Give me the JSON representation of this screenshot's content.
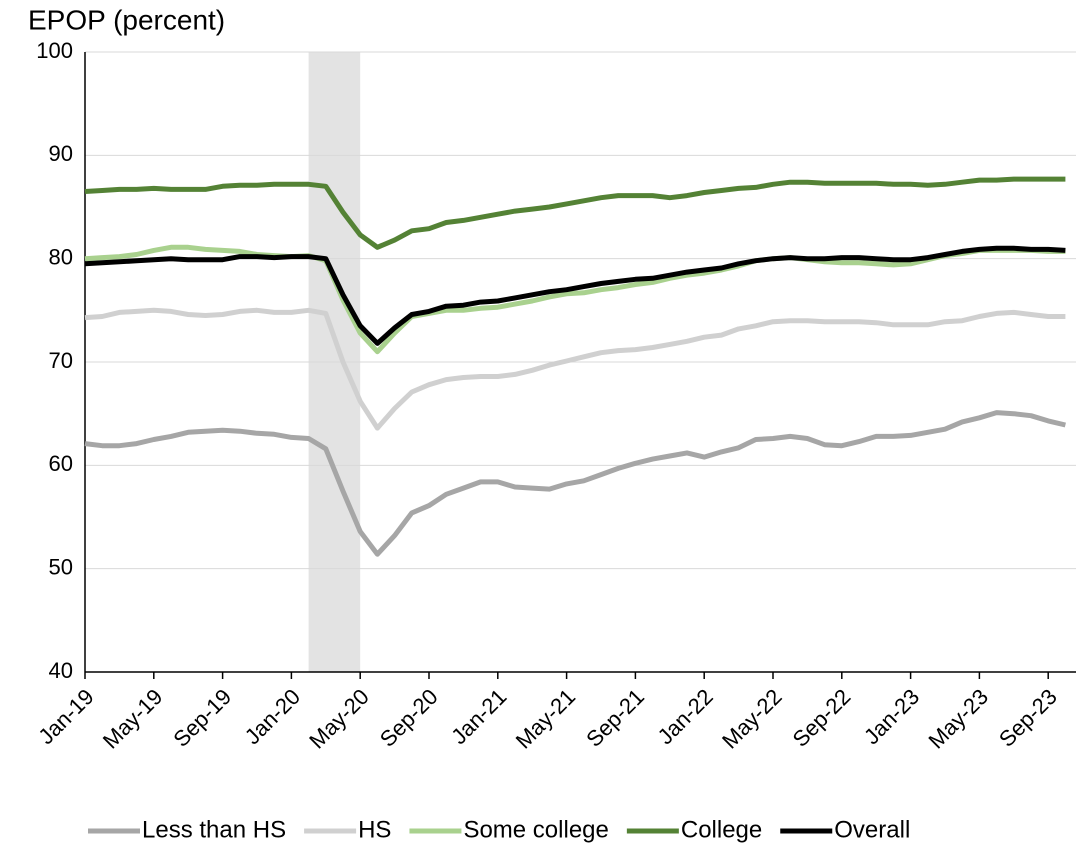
{
  "chart_data": {
    "type": "line",
    "title": "EPOP (percent)",
    "categories": [
      "Jan-19",
      null,
      null,
      null,
      "May-19",
      null,
      null,
      null,
      "Sep-19",
      null,
      null,
      null,
      "Jan-20",
      null,
      null,
      null,
      "May-20",
      null,
      null,
      null,
      "Sep-20",
      null,
      null,
      null,
      "Jan-21",
      null,
      null,
      null,
      "May-21",
      null,
      null,
      null,
      "Sep-21",
      null,
      null,
      null,
      "Jan-22",
      null,
      null,
      null,
      "May-22",
      null,
      null,
      null,
      "Sep-22",
      null,
      null,
      null,
      "Jan-23",
      null,
      null,
      null,
      "May-23",
      null,
      null,
      null,
      "Sep-23",
      null
    ],
    "series": [
      {
        "name": "Less than HS",
        "color": "#a6a6a6",
        "values": [
          62.1,
          61.9,
          61.9,
          62.1,
          62.5,
          62.8,
          63.2,
          63.3,
          63.4,
          63.3,
          63.1,
          63.0,
          62.7,
          62.6,
          61.6,
          57.5,
          53.6,
          51.4,
          53.2,
          55.4,
          56.1,
          57.2,
          57.8,
          58.4,
          58.4,
          57.9,
          57.8,
          57.7,
          58.2,
          58.5,
          59.1,
          59.7,
          60.2,
          60.6,
          60.9,
          61.2,
          60.8,
          61.3,
          61.7,
          62.5,
          62.6,
          62.8,
          62.6,
          62.0,
          61.9,
          62.3,
          62.8,
          62.8,
          62.9,
          63.2,
          63.5,
          64.2,
          64.6,
          65.1,
          65.0,
          64.8,
          64.3,
          63.9
        ]
      },
      {
        "name": "HS",
        "color": "#d0d0d0",
        "values": [
          74.3,
          74.4,
          74.8,
          74.9,
          75.0,
          74.9,
          74.6,
          74.5,
          74.6,
          74.9,
          75.0,
          74.8,
          74.8,
          75.0,
          74.7,
          70.0,
          66.2,
          63.6,
          65.5,
          67.1,
          67.8,
          68.3,
          68.5,
          68.6,
          68.6,
          68.8,
          69.2,
          69.7,
          70.1,
          70.5,
          70.9,
          71.1,
          71.2,
          71.4,
          71.7,
          72.0,
          72.4,
          72.6,
          73.2,
          73.5,
          73.9,
          74.0,
          74.0,
          73.9,
          73.9,
          73.9,
          73.8,
          73.6,
          73.6,
          73.6,
          73.9,
          74.0,
          74.4,
          74.7,
          74.8,
          74.6,
          74.4,
          74.4
        ]
      },
      {
        "name": "Some college",
        "color": "#a9d18e",
        "values": [
          80.0,
          80.1,
          80.2,
          80.4,
          80.8,
          81.1,
          81.1,
          80.9,
          80.8,
          80.7,
          80.4,
          80.3,
          80.2,
          80.3,
          79.8,
          76.0,
          72.8,
          71.0,
          72.8,
          74.4,
          74.7,
          75.0,
          75.0,
          75.2,
          75.3,
          75.6,
          75.9,
          76.3,
          76.6,
          76.7,
          77.0,
          77.2,
          77.5,
          77.7,
          78.1,
          78.4,
          78.6,
          78.9,
          79.3,
          79.8,
          80.0,
          80.1,
          79.9,
          79.7,
          79.6,
          79.6,
          79.5,
          79.4,
          79.5,
          79.9,
          80.3,
          80.5,
          80.8,
          80.8,
          80.8,
          80.8,
          80.7,
          80.7
        ]
      },
      {
        "name": "College",
        "color": "#548235",
        "values": [
          86.5,
          86.6,
          86.7,
          86.7,
          86.8,
          86.7,
          86.7,
          86.7,
          87.0,
          87.1,
          87.1,
          87.2,
          87.2,
          87.2,
          87.0,
          84.5,
          82.3,
          81.1,
          81.8,
          82.7,
          82.9,
          83.5,
          83.7,
          84.0,
          84.3,
          84.6,
          84.8,
          85.0,
          85.3,
          85.6,
          85.9,
          86.1,
          86.1,
          86.1,
          85.9,
          86.1,
          86.4,
          86.6,
          86.8,
          86.9,
          87.2,
          87.4,
          87.4,
          87.3,
          87.3,
          87.3,
          87.3,
          87.2,
          87.2,
          87.1,
          87.2,
          87.4,
          87.6,
          87.6,
          87.7,
          87.7,
          87.7,
          87.7
        ]
      },
      {
        "name": "Overall",
        "color": "#000000",
        "values": [
          79.5,
          79.6,
          79.7,
          79.8,
          79.9,
          80.0,
          79.9,
          79.9,
          79.9,
          80.2,
          80.2,
          80.1,
          80.2,
          80.2,
          80.0,
          76.5,
          73.5,
          71.8,
          73.3,
          74.6,
          74.9,
          75.4,
          75.5,
          75.8,
          75.9,
          76.2,
          76.5,
          76.8,
          77.0,
          77.3,
          77.6,
          77.8,
          78.0,
          78.1,
          78.4,
          78.7,
          78.9,
          79.1,
          79.5,
          79.8,
          80.0,
          80.1,
          80.0,
          80.0,
          80.1,
          80.1,
          80.0,
          79.9,
          79.9,
          80.1,
          80.4,
          80.7,
          80.9,
          81.0,
          81.0,
          80.9,
          80.9,
          80.8
        ]
      }
    ],
    "shade": [
      13,
      16
    ],
    "shade_color": "#e3e3e3",
    "ylim": [
      40,
      100
    ],
    "yticks": [
      40,
      50,
      60,
      70,
      80,
      90,
      100
    ],
    "grid": true,
    "legend": "bottom"
  }
}
